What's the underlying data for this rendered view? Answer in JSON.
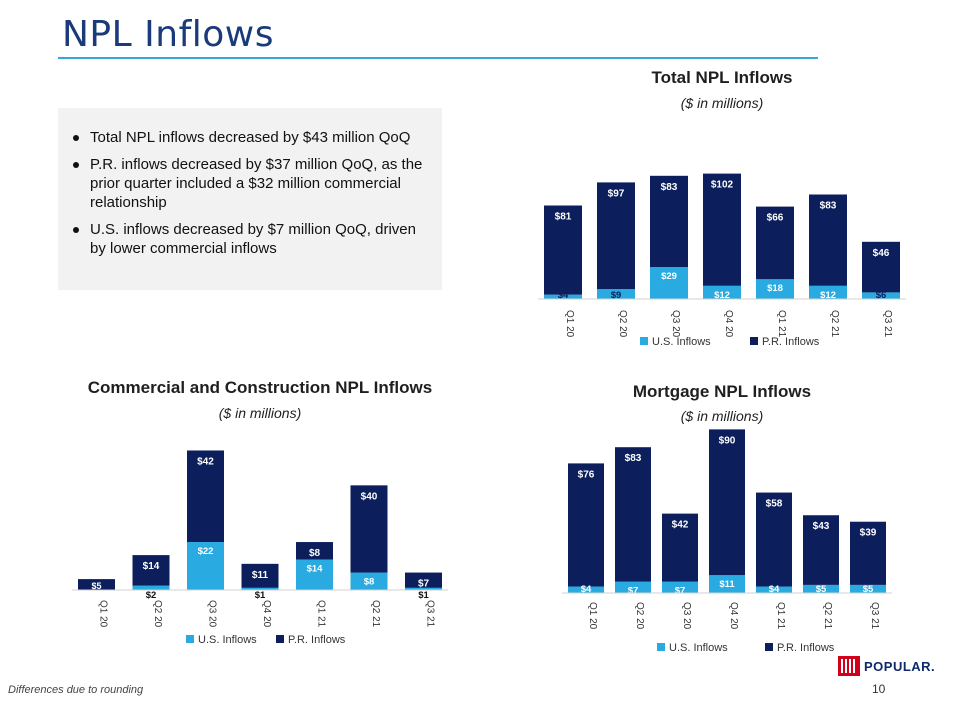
{
  "page": {
    "title": "NPL Inflows",
    "footnote": "Differences due to rounding",
    "page_number": "10",
    "logo_text": "POPULAR."
  },
  "bullets": [
    "Total NPL inflows decreased by $43 million QoQ",
    "P.R. inflows decreased by $37 million QoQ, as the prior quarter included a $32 million commercial relationship",
    "U.S. inflows decreased by $7 million QoQ, driven by lower commercial inflows"
  ],
  "colors": {
    "us": "#29abe2",
    "pr": "#0c1f5c",
    "accent": "#35a9d6",
    "title": "#1a3a7a"
  },
  "chart_data": [
    {
      "id": "total",
      "type": "bar",
      "stacked": true,
      "title": "Total NPL Inflows",
      "subtitle": "($ in millions)",
      "categories": [
        "Q1 20",
        "Q2 20",
        "Q3 20",
        "Q4 20",
        "Q1 21",
        "Q2 21",
        "Q3 21"
      ],
      "series": [
        {
          "name": "U.S. Inflows",
          "values": [
            4,
            9,
            29,
            12,
            18,
            12,
            6
          ],
          "labels": [
            "$4",
            "$9",
            "$29",
            "$12",
            "$18",
            "$12",
            "$6"
          ]
        },
        {
          "name": "P.R. Inflows",
          "values": [
            81,
            97,
            83,
            102,
            66,
            83,
            46
          ],
          "labels": [
            "$81",
            "$97",
            "$83",
            "$102",
            "$66",
            "$83",
            "$46"
          ]
        }
      ],
      "legend": "bottom"
    },
    {
      "id": "commercial",
      "type": "bar",
      "stacked": true,
      "title": "Commercial and Construction NPL Inflows",
      "subtitle": "($ in millions)",
      "categories": [
        "Q1 20",
        "Q2 20",
        "Q3 20",
        "Q4 20",
        "Q1 21",
        "Q2 21",
        "Q3 21"
      ],
      "series": [
        {
          "name": "U.S. Inflows",
          "values": [
            0,
            2,
            22,
            1,
            14,
            8,
            1
          ],
          "labels": [
            "",
            "$2",
            "$22",
            "$1",
            "$14",
            "$8",
            "$1"
          ]
        },
        {
          "name": "P.R. Inflows",
          "values": [
            5,
            14,
            42,
            11,
            8,
            40,
            7
          ],
          "labels": [
            "$5",
            "$14",
            "$42",
            "$11",
            "$8",
            "$40",
            "$7"
          ]
        }
      ],
      "legend": "bottom"
    },
    {
      "id": "mortgage",
      "type": "bar",
      "stacked": true,
      "title": "Mortgage NPL Inflows",
      "subtitle": "($ in millions)",
      "categories": [
        "Q1 20",
        "Q2 20",
        "Q3 20",
        "Q4 20",
        "Q1 21",
        "Q2 21",
        "Q3 21"
      ],
      "series": [
        {
          "name": "U.S. Inflows",
          "values": [
            4,
            7,
            7,
            11,
            4,
            5,
            5
          ],
          "labels": [
            "$4",
            "$7",
            "$7",
            "$11",
            "$4",
            "$5",
            "$5"
          ]
        },
        {
          "name": "P.R. Inflows",
          "values": [
            76,
            83,
            42,
            90,
            58,
            43,
            39
          ],
          "labels": [
            "$76",
            "$83",
            "$42",
            "$90",
            "$58",
            "$43",
            "$39"
          ]
        }
      ],
      "legend": "bottom"
    }
  ]
}
